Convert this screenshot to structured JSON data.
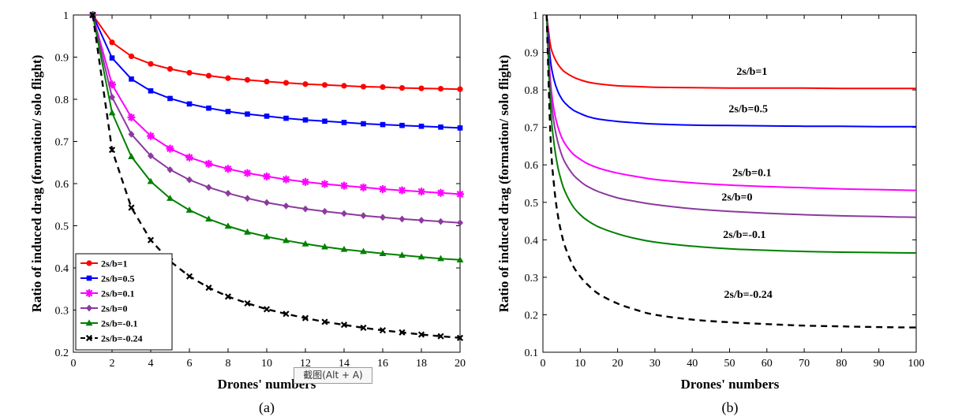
{
  "chart_data": [
    {
      "type": "line",
      "panel_label": "(a)",
      "xlabel": "Drones' numbers",
      "ylabel": "Ratio of induced drag (formation/ solo flight)",
      "xlim": [
        0,
        20
      ],
      "ylim": [
        0.2,
        1
      ],
      "xticks": [
        "0",
        "2",
        "4",
        "6",
        "8",
        "10",
        "12",
        "14",
        "16",
        "18",
        "20"
      ],
      "yticks": [
        "0.2",
        "0.3",
        "0.4",
        "0.5",
        "0.6",
        "0.7",
        "0.8",
        "0.9",
        "1"
      ],
      "legend_position": "bottom-left",
      "x": [
        1,
        2,
        3,
        4,
        5,
        6,
        7,
        8,
        9,
        10,
        11,
        12,
        13,
        14,
        15,
        16,
        17,
        18,
        19,
        20
      ],
      "series": [
        {
          "name": "2s/b=1",
          "color": "#ff0000",
          "marker": "circle",
          "dashed": false,
          "values": [
            1,
            0.935,
            0.902,
            0.884,
            0.872,
            0.863,
            0.856,
            0.85,
            0.846,
            0.842,
            0.839,
            0.836,
            0.834,
            0.832,
            0.83,
            0.829,
            0.827,
            0.826,
            0.825,
            0.824
          ]
        },
        {
          "name": "2s/b=0.5",
          "color": "#0000ff",
          "marker": "square",
          "dashed": false,
          "values": [
            1,
            0.898,
            0.848,
            0.82,
            0.802,
            0.789,
            0.779,
            0.771,
            0.765,
            0.76,
            0.755,
            0.751,
            0.748,
            0.745,
            0.742,
            0.74,
            0.738,
            0.736,
            0.734,
            0.732
          ]
        },
        {
          "name": "2s/b=0.1",
          "color": "#ff00ff",
          "marker": "star",
          "dashed": false,
          "values": [
            1,
            0.835,
            0.757,
            0.713,
            0.683,
            0.662,
            0.647,
            0.635,
            0.625,
            0.617,
            0.61,
            0.604,
            0.599,
            0.595,
            0.591,
            0.587,
            0.584,
            0.581,
            0.578,
            0.575
          ]
        },
        {
          "name": "2s/b=0",
          "color": "#8b3a9e",
          "marker": "diamond",
          "dashed": false,
          "values": [
            1,
            0.805,
            0.717,
            0.666,
            0.633,
            0.609,
            0.591,
            0.577,
            0.565,
            0.555,
            0.547,
            0.54,
            0.534,
            0.529,
            0.524,
            0.52,
            0.516,
            0.513,
            0.51,
            0.507
          ]
        },
        {
          "name": "2s/b=-0.1",
          "color": "#008000",
          "marker": "triangle",
          "dashed": false,
          "values": [
            1,
            0.768,
            0.664,
            0.605,
            0.565,
            0.537,
            0.516,
            0.499,
            0.485,
            0.474,
            0.465,
            0.457,
            0.45,
            0.444,
            0.439,
            0.434,
            0.43,
            0.426,
            0.422,
            0.419
          ]
        },
        {
          "name": "2s/b=-0.24",
          "color": "#000000",
          "marker": "cross",
          "dashed": true,
          "values": [
            1,
            0.68,
            0.543,
            0.466,
            0.416,
            0.38,
            0.353,
            0.332,
            0.316,
            0.302,
            0.291,
            0.281,
            0.272,
            0.265,
            0.258,
            0.252,
            0.247,
            0.242,
            0.238,
            0.234
          ]
        }
      ]
    },
    {
      "type": "line",
      "panel_label": "(b)",
      "xlabel": "Drones' numbers",
      "ylabel": "Ratio of induced drag (formation/ solo flight)",
      "xlim": [
        0,
        100
      ],
      "ylim": [
        0.1,
        1
      ],
      "xticks": [
        "0",
        "10",
        "20",
        "30",
        "40",
        "50",
        "60",
        "70",
        "80",
        "90",
        "100"
      ],
      "yticks": [
        "0.1",
        "0.2",
        "0.3",
        "0.4",
        "0.5",
        "0.6",
        "0.7",
        "0.8",
        "0.9",
        "1"
      ],
      "x": [
        1,
        2,
        3,
        4,
        5,
        6,
        8,
        10,
        12,
        15,
        20,
        25,
        30,
        40,
        50,
        60,
        70,
        80,
        90,
        100
      ],
      "series": [
        {
          "name": "2s/b=1",
          "color": "#ff0000",
          "dashed": false,
          "values": [
            1,
            0.92,
            0.888,
            0.869,
            0.856,
            0.847,
            0.835,
            0.827,
            0.821,
            0.816,
            0.811,
            0.809,
            0.807,
            0.806,
            0.805,
            0.805,
            0.805,
            0.804,
            0.804,
            0.804
          ]
        },
        {
          "name": "2s/b=0.5",
          "color": "#0000ff",
          "dashed": false,
          "values": [
            1,
            0.88,
            0.826,
            0.796,
            0.777,
            0.764,
            0.747,
            0.737,
            0.729,
            0.722,
            0.716,
            0.712,
            0.709,
            0.706,
            0.705,
            0.704,
            0.703,
            0.703,
            0.702,
            0.702
          ]
        },
        {
          "name": "2s/b=0.1",
          "color": "#ff00ff",
          "dashed": false,
          "values": [
            1,
            0.825,
            0.745,
            0.702,
            0.674,
            0.655,
            0.63,
            0.615,
            0.603,
            0.591,
            0.578,
            0.569,
            0.561,
            0.552,
            0.546,
            0.542,
            0.539,
            0.536,
            0.534,
            0.532
          ]
        },
        {
          "name": "2s/b=0",
          "color": "#8b3a9e",
          "dashed": false,
          "values": [
            1,
            0.8,
            0.71,
            0.661,
            0.628,
            0.605,
            0.575,
            0.556,
            0.542,
            0.528,
            0.512,
            0.502,
            0.494,
            0.483,
            0.476,
            0.471,
            0.467,
            0.464,
            0.462,
            0.46
          ]
        },
        {
          "name": "2s/b=-0.1",
          "color": "#008000",
          "dashed": false,
          "values": [
            1,
            0.76,
            0.655,
            0.594,
            0.555,
            0.527,
            0.49,
            0.467,
            0.451,
            0.434,
            0.416,
            0.403,
            0.394,
            0.383,
            0.376,
            0.372,
            0.369,
            0.367,
            0.366,
            0.365
          ]
        },
        {
          "name": "2s/b=-0.24",
          "color": "#000000",
          "dashed": true,
          "values": [
            1,
            0.68,
            0.543,
            0.466,
            0.416,
            0.38,
            0.332,
            0.302,
            0.28,
            0.255,
            0.23,
            0.213,
            0.2,
            0.187,
            0.18,
            0.175,
            0.171,
            0.169,
            0.167,
            0.166
          ]
        }
      ],
      "annotations": [
        {
          "text": "2s/b=1",
          "x": 56,
          "y": 0.84
        },
        {
          "text": "2s/b=0.5",
          "x": 55,
          "y": 0.74
        },
        {
          "text": "2s/b=0.1",
          "x": 56,
          "y": 0.57
        },
        {
          "text": "2s/b=0",
          "x": 52,
          "y": 0.505
        },
        {
          "text": "2s/b=-0.1",
          "x": 54,
          "y": 0.405
        },
        {
          "text": "2s/b=-0.24",
          "x": 55,
          "y": 0.245
        }
      ]
    }
  ],
  "tooltip": {
    "label": "截图(Alt + A)"
  }
}
